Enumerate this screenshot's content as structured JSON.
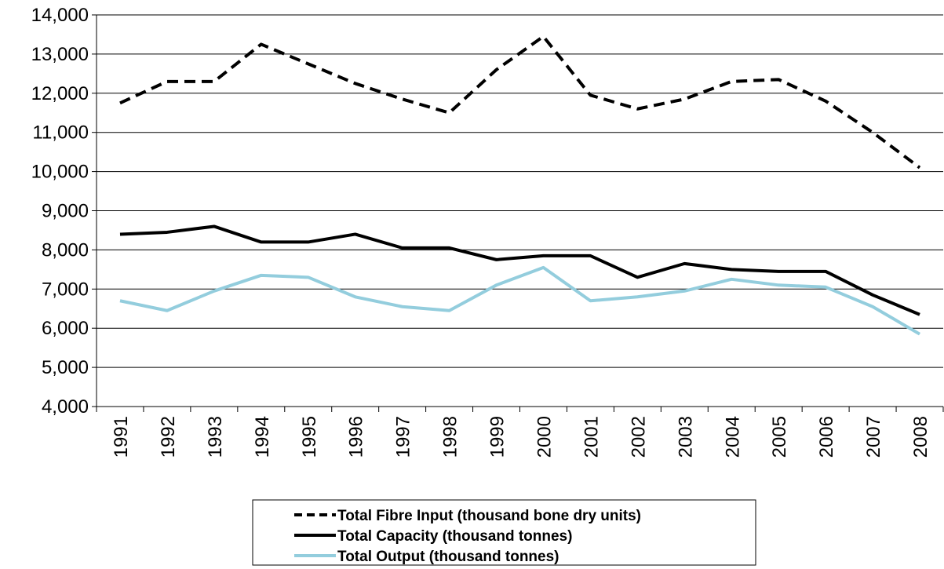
{
  "chart_data": {
    "type": "line",
    "categories": [
      "1991",
      "1992",
      "1993",
      "1994",
      "1995",
      "1996",
      "1997",
      "1998",
      "1999",
      "2000",
      "2001",
      "2002",
      "2003",
      "2004",
      "2005",
      "2006",
      "2007",
      "2008"
    ],
    "series": [
      {
        "name": "Total Fibre Input (thousand bone dry units)",
        "color": "#000000",
        "style": "dashed",
        "values": [
          11750,
          12300,
          12300,
          13250,
          12750,
          12250,
          11850,
          11500,
          12600,
          13450,
          11950,
          11600,
          11850,
          12300,
          12350,
          11800,
          11000,
          10100
        ]
      },
      {
        "name": "Total Capacity (thousand tonnes)",
        "color": "#000000",
        "style": "solid",
        "values": [
          8400,
          8450,
          8600,
          8200,
          8200,
          8400,
          8050,
          8050,
          7750,
          7850,
          7850,
          7300,
          7650,
          7500,
          7450,
          7450,
          6850,
          6350
        ]
      },
      {
        "name": "Total Output (thousand tonnes)",
        "color": "#93cddd",
        "style": "solid",
        "values": [
          6700,
          6450,
          6950,
          7350,
          7300,
          6800,
          6550,
          6450,
          7100,
          7550,
          6700,
          6800,
          6950,
          7250,
          7100,
          7050,
          6550,
          5850
        ]
      }
    ],
    "ylim": [
      4000,
      14000
    ],
    "yticks": [
      {
        "value": 4000,
        "label": "4,000"
      },
      {
        "value": 5000,
        "label": "5,000"
      },
      {
        "value": 6000,
        "label": "6,000"
      },
      {
        "value": 7000,
        "label": "7,000"
      },
      {
        "value": 8000,
        "label": "8,000"
      },
      {
        "value": 9000,
        "label": "9,000"
      },
      {
        "value": 10000,
        "label": "10,000"
      },
      {
        "value": 11000,
        "label": "11,000"
      },
      {
        "value": 12000,
        "label": "12,000"
      },
      {
        "value": 13000,
        "label": "13,000"
      },
      {
        "value": 14000,
        "label": "14,000"
      }
    ],
    "grid": true,
    "legend": "bottom"
  }
}
